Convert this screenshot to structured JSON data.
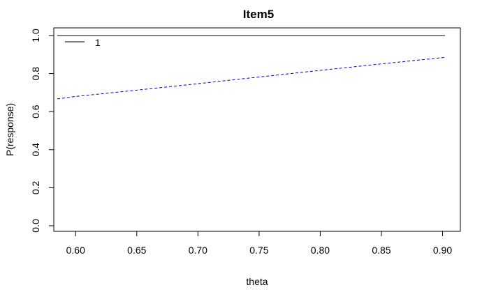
{
  "chart_data": {
    "type": "line",
    "title": "Item5",
    "xlabel": "theta",
    "ylabel": "P(response)",
    "xlim": [
      0.585,
      0.902
    ],
    "ylim": [
      0.0,
      1.0
    ],
    "x_ticks": [
      "0.60",
      "0.65",
      "0.70",
      "0.75",
      "0.80",
      "0.85",
      "0.90"
    ],
    "y_ticks": [
      "0.0",
      "0.2",
      "0.4",
      "0.6",
      "0.8",
      "1.0"
    ],
    "grid": false,
    "legend": {
      "position": "top-left",
      "entries": [
        "1"
      ]
    },
    "series": [
      {
        "name": "1",
        "color": "#000000",
        "style": "solid",
        "x": [
          0.585,
          0.902
        ],
        "y": [
          1.0,
          1.0
        ]
      },
      {
        "color": "#0000cc",
        "style": "dashed",
        "x": [
          0.585,
          0.6,
          0.65,
          0.7,
          0.75,
          0.8,
          0.85,
          0.9,
          0.902
        ],
        "y": [
          0.667,
          0.68,
          0.713,
          0.747,
          0.782,
          0.817,
          0.851,
          0.884,
          0.886
        ]
      }
    ]
  }
}
